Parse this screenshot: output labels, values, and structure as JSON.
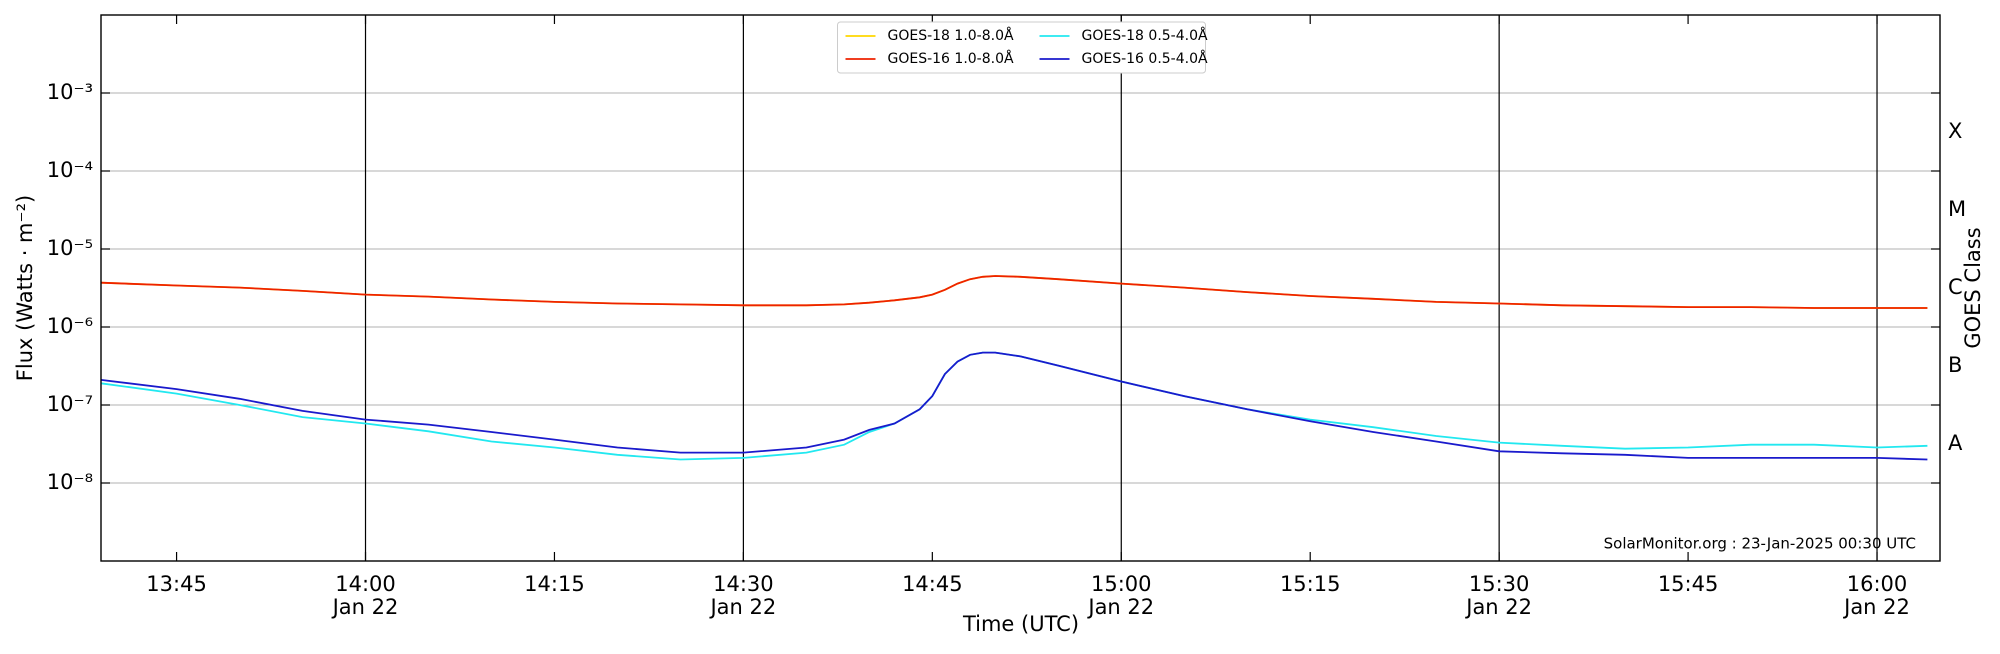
{
  "chart_data": {
    "type": "line",
    "xlabel": "Time (UTC)",
    "ylabel": "Flux (Watts · m⁻²)",
    "y2label": "GOES Class",
    "annotation": "SolarMonitor.org : 23-Jan-2025 00:30 UTC",
    "log_y": true,
    "grid": true,
    "legend": "upper center",
    "xlim": [
      "13:39",
      "16:05"
    ],
    "ylim": [
      1e-09,
      0.01
    ],
    "y2lim": [
      1e-09,
      0.01
    ],
    "xticks": [
      {
        "value": "13:45",
        "label": [
          "13:45"
        ]
      },
      {
        "value": "14:00",
        "label": [
          "14:00",
          "Jan 22"
        ]
      },
      {
        "value": "14:15",
        "label": [
          "14:15"
        ]
      },
      {
        "value": "14:30",
        "label": [
          "14:30",
          "Jan 22"
        ]
      },
      {
        "value": "14:45",
        "label": [
          "14:45"
        ]
      },
      {
        "value": "15:00",
        "label": [
          "15:00",
          "Jan 22"
        ]
      },
      {
        "value": "15:15",
        "label": [
          "15:15"
        ]
      },
      {
        "value": "15:30",
        "label": [
          "15:30",
          "Jan 22"
        ]
      },
      {
        "value": "15:45",
        "label": [
          "15:45"
        ]
      },
      {
        "value": "16:00",
        "label": [
          "16:00",
          "Jan 22"
        ]
      }
    ],
    "yticks": [
      {
        "value": 1e-08,
        "label": "10⁻⁸"
      },
      {
        "value": 1e-07,
        "label": "10⁻⁷"
      },
      {
        "value": 1e-06,
        "label": "10⁻⁶"
      },
      {
        "value": 1e-05,
        "label": "10⁻⁵"
      },
      {
        "value": 0.0001,
        "label": "10⁻⁴"
      },
      {
        "value": 0.001,
        "label": "10⁻³"
      }
    ],
    "y2ticks": [
      {
        "value": 3.162e-08,
        "label": "A"
      },
      {
        "value": 3.162e-07,
        "label": "B"
      },
      {
        "value": 3.162e-06,
        "label": "C"
      },
      {
        "value": 3.162e-05,
        "label": "M"
      },
      {
        "value": 0.0003162,
        "label": "X"
      }
    ],
    "vlines": [
      "14:00",
      "14:30",
      "15:00",
      "15:30",
      "16:00"
    ],
    "x": [
      "13:39",
      "13:45",
      "13:50",
      "13:55",
      "14:00",
      "14:05",
      "14:10",
      "14:15",
      "14:20",
      "14:25",
      "14:30",
      "14:35",
      "14:38",
      "14:40",
      "14:42",
      "14:44",
      "14:45",
      "14:46",
      "14:47",
      "14:48",
      "14:49",
      "14:50",
      "14:52",
      "14:55",
      "15:00",
      "15:05",
      "15:10",
      "15:15",
      "15:20",
      "15:25",
      "15:30",
      "15:35",
      "15:40",
      "15:45",
      "15:50",
      "15:55",
      "16:00",
      "16:04"
    ],
    "series": [
      {
        "name": "GOES-18 1.0-8.0Å",
        "color": "#ffd700",
        "values": [
          3.7e-06,
          3.4e-06,
          3.2e-06,
          2.9e-06,
          2.6e-06,
          2.45e-06,
          2.25e-06,
          2.1e-06,
          2e-06,
          1.95e-06,
          1.9e-06,
          1.9e-06,
          1.95e-06,
          2.05e-06,
          2.2e-06,
          2.4e-06,
          2.6e-06,
          3e-06,
          3.6e-06,
          4.1e-06,
          4.4e-06,
          4.5e-06,
          4.4e-06,
          4.1e-06,
          3.6e-06,
          3.2e-06,
          2.8e-06,
          2.5e-06,
          2.3e-06,
          2.1e-06,
          2e-06,
          1.9e-06,
          1.85e-06,
          1.8e-06,
          1.8e-06,
          1.75e-06,
          1.75e-06,
          1.75e-06
        ]
      },
      {
        "name": "GOES-16 1.0-8.0Å",
        "color": "#ee2200",
        "values": [
          3.7e-06,
          3.4e-06,
          3.2e-06,
          2.9e-06,
          2.6e-06,
          2.45e-06,
          2.25e-06,
          2.1e-06,
          2e-06,
          1.95e-06,
          1.9e-06,
          1.9e-06,
          1.95e-06,
          2.05e-06,
          2.2e-06,
          2.4e-06,
          2.6e-06,
          3e-06,
          3.6e-06,
          4.1e-06,
          4.4e-06,
          4.5e-06,
          4.4e-06,
          4.1e-06,
          3.6e-06,
          3.2e-06,
          2.8e-06,
          2.5e-06,
          2.3e-06,
          2.1e-06,
          2e-06,
          1.9e-06,
          1.85e-06,
          1.8e-06,
          1.8e-06,
          1.75e-06,
          1.75e-06,
          1.75e-06
        ]
      },
      {
        "name": "GOES-18 0.5-4.0Å",
        "color": "#22e8f0",
        "values": [
          1.9e-07,
          1.4e-07,
          1e-07,
          7e-08,
          5.8e-08,
          4.6e-08,
          3.4e-08,
          2.85e-08,
          2.3e-08,
          2e-08,
          2.1e-08,
          2.45e-08,
          3.1e-08,
          4.5e-08,
          5.8e-08,
          8.8e-08,
          1.3e-07,
          2.5e-07,
          3.6e-07,
          4.4e-07,
          4.7e-07,
          4.7e-07,
          4.2e-07,
          3.2e-07,
          2e-07,
          1.3e-07,
          8.8e-08,
          6.5e-08,
          5.2e-08,
          4e-08,
          3.3e-08,
          3e-08,
          2.75e-08,
          2.85e-08,
          3.1e-08,
          3.1e-08,
          2.85e-08,
          3e-08
        ]
      },
      {
        "name": "GOES-16 0.5-4.0Å",
        "color": "#1a1acc",
        "values": [
          2.1e-07,
          1.6e-07,
          1.2e-07,
          8.4e-08,
          6.5e-08,
          5.6e-08,
          4.5e-08,
          3.6e-08,
          2.85e-08,
          2.45e-08,
          2.45e-08,
          2.85e-08,
          3.6e-08,
          4.8e-08,
          5.8e-08,
          8.8e-08,
          1.3e-07,
          2.5e-07,
          3.6e-07,
          4.4e-07,
          4.7e-07,
          4.7e-07,
          4.2e-07,
          3.2e-07,
          2e-07,
          1.3e-07,
          8.8e-08,
          6.2e-08,
          4.5e-08,
          3.4e-08,
          2.55e-08,
          2.4e-08,
          2.3e-08,
          2.1e-08,
          2.1e-08,
          2.1e-08,
          2.1e-08,
          2e-08
        ]
      }
    ]
  }
}
